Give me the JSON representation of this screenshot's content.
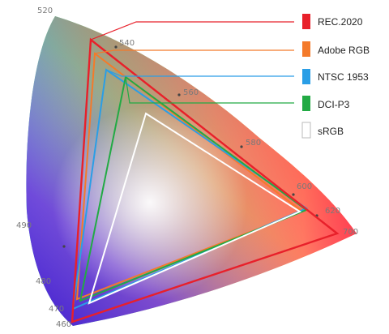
{
  "diagram": {
    "wavelength_labels": [
      {
        "id": "wl-520",
        "text": "520"
      },
      {
        "id": "wl-540",
        "text": "540"
      },
      {
        "id": "wl-560",
        "text": "560"
      },
      {
        "id": "wl-580",
        "text": "580"
      },
      {
        "id": "wl-600",
        "text": "600"
      },
      {
        "id": "wl-620",
        "text": "620"
      },
      {
        "id": "wl-700",
        "text": "700"
      },
      {
        "id": "wl-490",
        "text": "490"
      },
      {
        "id": "wl-480",
        "text": "480"
      },
      {
        "id": "wl-470",
        "text": "470"
      },
      {
        "id": "wl-460",
        "text": "460"
      }
    ],
    "gamuts": [
      {
        "id": "rec2020",
        "label": "REC.2020",
        "color": "#e8202a"
      },
      {
        "id": "adobe-rgb",
        "label": "Adobe RGB",
        "color": "#f47a2a"
      },
      {
        "id": "ntsc-1953",
        "label": "NTSC 1953",
        "color": "#2a9ee6"
      },
      {
        "id": "dci-p3",
        "label": "DCI-P3",
        "color": "#22aa44"
      },
      {
        "id": "srgb",
        "label": "sRGB",
        "color": "#ffffff"
      }
    ]
  }
}
